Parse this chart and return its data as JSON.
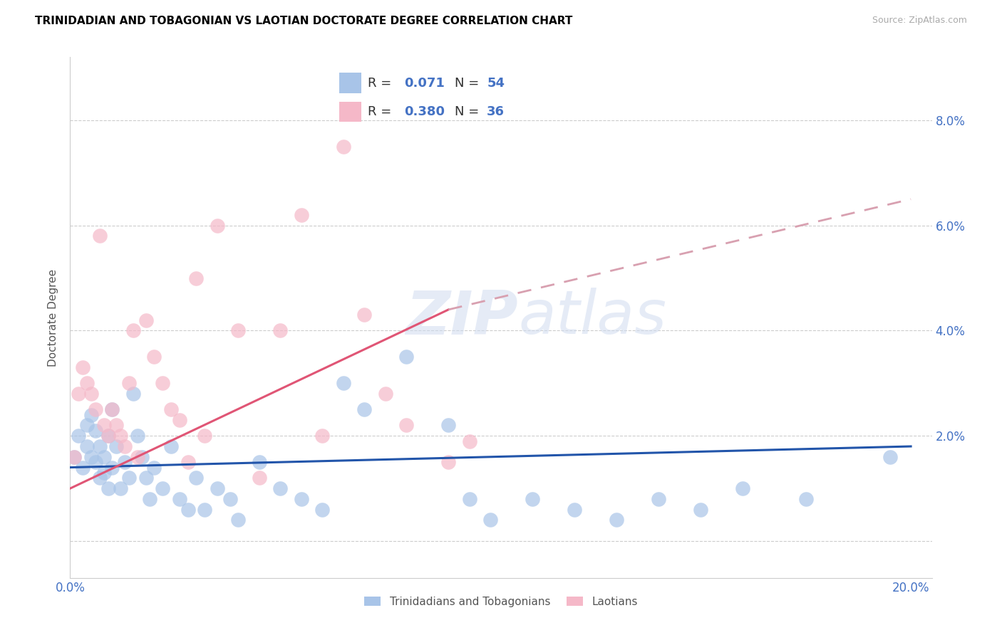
{
  "title": "TRINIDADIAN AND TOBAGONIAN VS LAOTIAN DOCTORATE DEGREE CORRELATION CHART",
  "source": "Source: ZipAtlas.com",
  "ylabel": "Doctorate Degree",
  "watermark": "ZIPatlas",
  "color_blue": "#a8c4e8",
  "color_pink": "#f5b8c8",
  "line_blue": "#2255aa",
  "line_pink": "#e05575",
  "line_dashed": "#d8a0b0",
  "xlim": [
    0.0,
    0.205
  ],
  "ylim": [
    -0.007,
    0.092
  ],
  "yticks": [
    0.0,
    0.02,
    0.04,
    0.06,
    0.08
  ],
  "xtick_positions": [
    0.0,
    0.05,
    0.1,
    0.15,
    0.2
  ],
  "xtick_labels": [
    "0.0%",
    "",
    "",
    "",
    "20.0%"
  ],
  "ytick_labels_right": [
    "",
    "2.0%",
    "4.0%",
    "6.0%",
    "8.0%"
  ],
  "blue_x": [
    0.001,
    0.002,
    0.003,
    0.004,
    0.004,
    0.005,
    0.005,
    0.006,
    0.006,
    0.007,
    0.007,
    0.008,
    0.008,
    0.009,
    0.009,
    0.01,
    0.01,
    0.011,
    0.012,
    0.013,
    0.014,
    0.015,
    0.016,
    0.017,
    0.018,
    0.019,
    0.02,
    0.022,
    0.024,
    0.026,
    0.028,
    0.03,
    0.032,
    0.035,
    0.038,
    0.04,
    0.045,
    0.05,
    0.055,
    0.06,
    0.065,
    0.07,
    0.08,
    0.09,
    0.095,
    0.1,
    0.11,
    0.12,
    0.13,
    0.14,
    0.15,
    0.16,
    0.175,
    0.195
  ],
  "blue_y": [
    0.016,
    0.02,
    0.014,
    0.018,
    0.022,
    0.016,
    0.024,
    0.015,
    0.021,
    0.012,
    0.018,
    0.016,
    0.013,
    0.01,
    0.02,
    0.014,
    0.025,
    0.018,
    0.01,
    0.015,
    0.012,
    0.028,
    0.02,
    0.016,
    0.012,
    0.008,
    0.014,
    0.01,
    0.018,
    0.008,
    0.006,
    0.012,
    0.006,
    0.01,
    0.008,
    0.004,
    0.015,
    0.01,
    0.008,
    0.006,
    0.03,
    0.025,
    0.035,
    0.022,
    0.008,
    0.004,
    0.008,
    0.006,
    0.004,
    0.008,
    0.006,
    0.01,
    0.008,
    0.016
  ],
  "pink_x": [
    0.001,
    0.002,
    0.003,
    0.004,
    0.005,
    0.006,
    0.007,
    0.008,
    0.009,
    0.01,
    0.011,
    0.012,
    0.013,
    0.014,
    0.015,
    0.016,
    0.018,
    0.02,
    0.022,
    0.024,
    0.026,
    0.028,
    0.03,
    0.032,
    0.035,
    0.04,
    0.045,
    0.05,
    0.055,
    0.06,
    0.065,
    0.07,
    0.075,
    0.08,
    0.09,
    0.095
  ],
  "pink_y": [
    0.016,
    0.028,
    0.033,
    0.03,
    0.028,
    0.025,
    0.058,
    0.022,
    0.02,
    0.025,
    0.022,
    0.02,
    0.018,
    0.03,
    0.04,
    0.016,
    0.042,
    0.035,
    0.03,
    0.025,
    0.023,
    0.015,
    0.05,
    0.02,
    0.06,
    0.04,
    0.012,
    0.04,
    0.062,
    0.02,
    0.075,
    0.043,
    0.028,
    0.022,
    0.015,
    0.019
  ],
  "blue_trend": [
    0.0,
    0.2,
    0.014,
    0.018
  ],
  "pink_trend_solid": [
    0.0,
    0.09,
    0.01,
    0.044
  ],
  "pink_trend_dash": [
    0.09,
    0.2,
    0.044,
    0.065
  ]
}
